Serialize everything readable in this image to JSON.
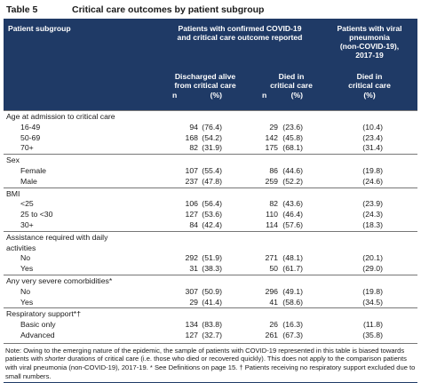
{
  "table": {
    "number": "Table 5",
    "title": "Critical care outcomes by patient subgroup"
  },
  "header": {
    "subgroup": "Patient subgroup",
    "group_covid": [
      "Patients with confirmed COVID-19",
      "and critical care outcome reported"
    ],
    "group_viral": [
      "Patients with viral",
      "pneumonia",
      "(non-COVID-19),",
      "2017-19"
    ],
    "col_discharged": [
      "Discharged alive",
      "from critical care"
    ],
    "col_died": [
      "Died in",
      "critical care"
    ],
    "col_viral_died": [
      "Died in",
      "critical care"
    ],
    "n": "n",
    "pct": "(%)"
  },
  "sections": [
    {
      "heading": [
        "Age at admission to critical care"
      ],
      "rows": [
        {
          "label": "16-49",
          "n1": "94",
          "p1": "(76.4)",
          "n2": "29",
          "p2": "(23.6)",
          "p3": "(10.4)"
        },
        {
          "label": "50-69",
          "n1": "168",
          "p1": "(54.2)",
          "n2": "142",
          "p2": "(45.8)",
          "p3": "(23.4)"
        },
        {
          "label": "70+",
          "n1": "82",
          "p1": "(31.9)",
          "n2": "175",
          "p2": "(68.1)",
          "p3": "(31.4)"
        }
      ]
    },
    {
      "heading": [
        "Sex"
      ],
      "rows": [
        {
          "label": "Female",
          "n1": "107",
          "p1": "(55.4)",
          "n2": "86",
          "p2": "(44.6)",
          "p3": "(19.8)"
        },
        {
          "label": "Male",
          "n1": "237",
          "p1": "(47.8)",
          "n2": "259",
          "p2": "(52.2)",
          "p3": "(24.6)"
        }
      ]
    },
    {
      "heading": [
        "BMI"
      ],
      "rows": [
        {
          "label": "<25",
          "n1": "106",
          "p1": "(56.4)",
          "n2": "82",
          "p2": "(43.6)",
          "p3": "(23.9)"
        },
        {
          "label": "25 to <30",
          "n1": "127",
          "p1": "(53.6)",
          "n2": "110",
          "p2": "(46.4)",
          "p3": "(24.3)"
        },
        {
          "label": "30+",
          "n1": "84",
          "p1": "(42.4)",
          "n2": "114",
          "p2": "(57.6)",
          "p3": "(18.3)"
        }
      ]
    },
    {
      "heading": [
        "Assistance required with daily",
        "activities"
      ],
      "rows": [
        {
          "label": "No",
          "n1": "292",
          "p1": "(51.9)",
          "n2": "271",
          "p2": "(48.1)",
          "p3": "(20.1)"
        },
        {
          "label": "Yes",
          "n1": "31",
          "p1": "(38.3)",
          "n2": "50",
          "p2": "(61.7)",
          "p3": "(29.0)"
        }
      ]
    },
    {
      "heading": [
        "Any very severe comorbidities*"
      ],
      "rows": [
        {
          "label": "No",
          "n1": "307",
          "p1": "(50.9)",
          "n2": "296",
          "p2": "(49.1)",
          "p3": "(19.8)"
        },
        {
          "label": "Yes",
          "n1": "29",
          "p1": "(41.4)",
          "n2": "41",
          "p2": "(58.6)",
          "p3": "(34.5)"
        }
      ]
    },
    {
      "heading": [
        "Respiratory support*†"
      ],
      "rows": [
        {
          "label": "Basic only",
          "n1": "134",
          "p1": "(83.8)",
          "n2": "26",
          "p2": "(16.3)",
          "p3": "(11.8)"
        },
        {
          "label": "Advanced",
          "n1": "127",
          "p1": "(32.7)",
          "n2": "261",
          "p2": "(67.3)",
          "p3": "(35.8)"
        }
      ]
    }
  ],
  "note": {
    "part1": "Note: Owing to the emerging nature of the epidemic, the sample of patients with COVID-19 represented in this table is biased towards patients with ",
    "emph": "shorter",
    "part2": " durations of critical care (i.e. those who died or recovered quickly). This does not apply to the comparison patients with viral pneumonia (non-COVID-19), 2017-19. * See Definitions on page 15. † Patients receiving no respiratory support excluded due to small numbers."
  }
}
